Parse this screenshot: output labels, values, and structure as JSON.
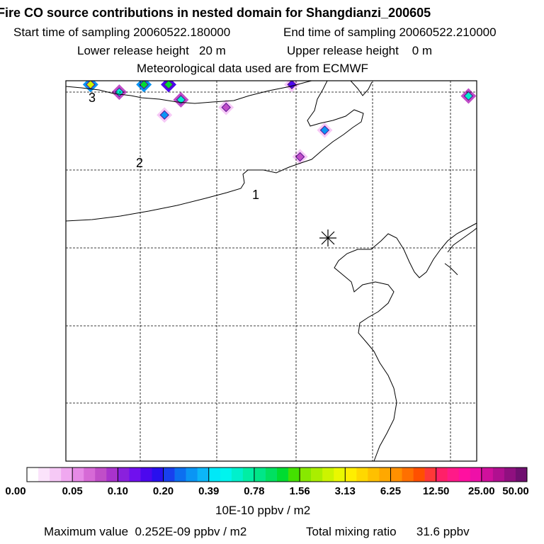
{
  "header": {
    "title": "Fire CO source contributions in nested domain for Shangdianzi_200605",
    "start_time": "Start time of sampling 20060522.180000",
    "end_time": "End time of sampling 20060522.210000",
    "lower_release": "Lower release height   20 m",
    "upper_release": "Upper release height    0 m",
    "met_data": "Meteorological data used are from ECMWF"
  },
  "chart_data": {
    "type": "heatmap",
    "title": "Fire CO source contributions in nested domain for Shangdianzi_200605",
    "contour_labels": [
      "3",
      "2",
      "1"
    ],
    "receptor_marker": "asterisk",
    "colorbar": {
      "tick_labels": [
        "0.00",
        "0.05",
        "0.10",
        "0.20",
        "0.39",
        "0.78",
        "1.56",
        "3.13",
        "6.25",
        "12.50",
        "25.00",
        "50.00"
      ],
      "colors": [
        "#ffffff",
        "#fbe3fb",
        "#f6c9f6",
        "#f0a8f0",
        "#e68ae6",
        "#d66ad6",
        "#c04ec8",
        "#a933cc",
        "#8a20dd",
        "#7010ee",
        "#4c08ee",
        "#2810ee",
        "#1840ee",
        "#0c6ff0",
        "#0a95f4",
        "#0cb6f8",
        "#00e8f8",
        "#00f4ee",
        "#00f0cc",
        "#00eea4",
        "#00e688",
        "#00e060",
        "#00dc30",
        "#44e000",
        "#88e800",
        "#aaee00",
        "#ccf400",
        "#eaf800",
        "#ffee00",
        "#ffd800",
        "#ffc000",
        "#ffa800",
        "#ff9000",
        "#ff7000",
        "#ff5000",
        "#ff3838",
        "#ff2068",
        "#ff1a88",
        "#ff10a0",
        "#ee10a8",
        "#d0109c",
        "#b01090",
        "#901080",
        "#701070"
      ],
      "units": "10E-10 ppbv / m2"
    },
    "blobs": [
      {
        "lon": 0.06,
        "lat": 0.99,
        "value": 2.0
      },
      {
        "lon": 0.19,
        "lat": 0.99,
        "value": 1.5
      },
      {
        "lon": 0.25,
        "lat": 0.99,
        "value": 0.8
      },
      {
        "lon": 0.13,
        "lat": 0.97,
        "value": 0.4
      },
      {
        "lon": 0.28,
        "lat": 0.95,
        "value": 0.4
      },
      {
        "lon": 0.24,
        "lat": 0.91,
        "value": 0.3
      },
      {
        "lon": 0.63,
        "lat": 0.87,
        "value": 0.3
      },
      {
        "lon": 0.98,
        "lat": 0.96,
        "value": 0.5
      },
      {
        "lon": 0.55,
        "lat": 0.99,
        "value": 0.1
      },
      {
        "lon": 0.57,
        "lat": 0.8,
        "value": 0.07
      },
      {
        "lon": 0.39,
        "lat": 0.93,
        "value": 0.06
      }
    ]
  },
  "footer": {
    "max_value": "Maximum value  0.252E-09 ppbv / m2",
    "total_mixing": "Total mixing ratio      31.6 ppbv"
  }
}
